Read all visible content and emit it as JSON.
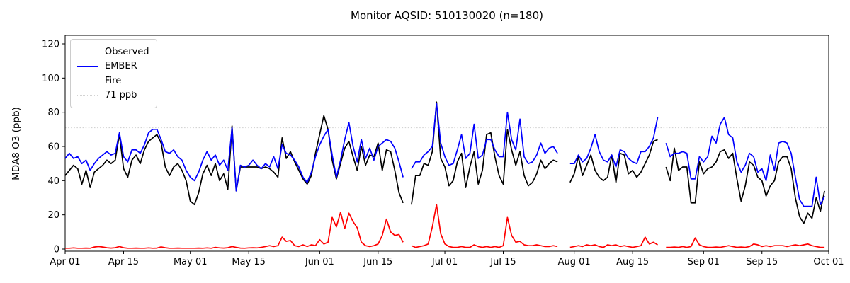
{
  "chart_data": {
    "type": "line",
    "title": "Monitor AQSID: 510130020 (n=180)",
    "ylabel": "MDA8 O3 (ppb)",
    "xlabel": "",
    "x_unit": "day index from Apr 01 (daily cadence, Apr 01 - Sep 30)",
    "n_label": 180,
    "ylim": [
      -2,
      126
    ],
    "y_ticks": [
      0,
      20,
      40,
      60,
      80,
      100,
      120
    ],
    "x_total_days": 183,
    "x_ticks": [
      {
        "label": "Apr 01",
        "day": 0
      },
      {
        "label": "Apr 15",
        "day": 14
      },
      {
        "label": "May 01",
        "day": 30
      },
      {
        "label": "May 15",
        "day": 44
      },
      {
        "label": "Jun 01",
        "day": 61
      },
      {
        "label": "Jun 15",
        "day": 75
      },
      {
        "label": "Jul 01",
        "day": 91
      },
      {
        "label": "Jul 15",
        "day": 105
      },
      {
        "label": "Aug 01",
        "day": 122
      },
      {
        "label": "Aug 15",
        "day": 136
      },
      {
        "label": "Sep 01",
        "day": 153
      },
      {
        "label": "Sep 15",
        "day": 167
      },
      {
        "label": "Oct 01",
        "day": 183
      }
    ],
    "threshold": {
      "value": 71,
      "label": "71 ppb",
      "color": "#d3d3d3",
      "style": "dotted"
    },
    "legend": [
      {
        "label": "Observed",
        "color": "#000000",
        "style": "solid"
      },
      {
        "label": "EMBER",
        "color": "#0000ff",
        "style": "solid"
      },
      {
        "label": "Fire",
        "color": "#ff0000",
        "style": "solid"
      },
      {
        "label": "71 ppb",
        "color": "#d3d3d3",
        "style": "dotted"
      }
    ],
    "series": [
      {
        "name": "Observed",
        "color": "#000000",
        "values": [
          43,
          46,
          49,
          47,
          38,
          46,
          36,
          45,
          47,
          49,
          52,
          50,
          52,
          67,
          47,
          42,
          52,
          55,
          50,
          58,
          63,
          65,
          67,
          62,
          48,
          43,
          48,
          50,
          46,
          40,
          28,
          26,
          33,
          44,
          49,
          43,
          50,
          40,
          44,
          35,
          72,
          34,
          48,
          48,
          48,
          48,
          48,
          47,
          48,
          47,
          45,
          42,
          65,
          53,
          57,
          51,
          46,
          41,
          38,
          43,
          56,
          67,
          78,
          70,
          52,
          41,
          50,
          59,
          63,
          54,
          46,
          60,
          49,
          55,
          54,
          62,
          46,
          58,
          57,
          46,
          33,
          27,
          null,
          26,
          43,
          43,
          50,
          49,
          57,
          86,
          53,
          48,
          37,
          40,
          51,
          56,
          36,
          48,
          57,
          38,
          46,
          67,
          68,
          54,
          43,
          38,
          70,
          58,
          49,
          57,
          43,
          37,
          39,
          44,
          52,
          47,
          50,
          52,
          51,
          null,
          null,
          39,
          44,
          54,
          43,
          49,
          55,
          46,
          42,
          40,
          42,
          55,
          39,
          56,
          55,
          44,
          46,
          42,
          45,
          50,
          55,
          63,
          64,
          null,
          48,
          40,
          59,
          46,
          48,
          48,
          27,
          27,
          51,
          44,
          47,
          48,
          51,
          57,
          58,
          53,
          56,
          41,
          28,
          37,
          51,
          49,
          42,
          40,
          31,
          37,
          40,
          51,
          54,
          54,
          47,
          30,
          19,
          15,
          21,
          18,
          30,
          22,
          34
        ]
      },
      {
        "name": "EMBER",
        "color": "#0000ff",
        "values": [
          53,
          56,
          53,
          54,
          50,
          52,
          46,
          50,
          53,
          55,
          57,
          55,
          56,
          68,
          54,
          51,
          58,
          58,
          56,
          61,
          68,
          70,
          70,
          64,
          57,
          56,
          58,
          54,
          52,
          46,
          42,
          40,
          45,
          52,
          57,
          52,
          55,
          49,
          52,
          46,
          71,
          34,
          49,
          48,
          49,
          52,
          49,
          47,
          50,
          48,
          54,
          47,
          61,
          56,
          55,
          52,
          48,
          42,
          39,
          45,
          54,
          61,
          66,
          70,
          55,
          42,
          52,
          64,
          74,
          60,
          51,
          64,
          53,
          59,
          52,
          60,
          62,
          64,
          63,
          59,
          51,
          42,
          null,
          47,
          51,
          51,
          55,
          57,
          60,
          85,
          62,
          54,
          49,
          50,
          58,
          67,
          53,
          56,
          73,
          53,
          55,
          64,
          64,
          58,
          54,
          54,
          80,
          64,
          58,
          76,
          54,
          50,
          51,
          55,
          62,
          56,
          59,
          60,
          56,
          null,
          null,
          50,
          50,
          55,
          51,
          53,
          59,
          67,
          57,
          52,
          51,
          55,
          48,
          58,
          57,
          53,
          51,
          50,
          57,
          57,
          60,
          65,
          77,
          null,
          62,
          54,
          56,
          56,
          57,
          56,
          41,
          41,
          54,
          51,
          54,
          66,
          62,
          73,
          77,
          67,
          65,
          51,
          45,
          49,
          56,
          54,
          45,
          47,
          40,
          55,
          46,
          62,
          63,
          62,
          56,
          42,
          29,
          25,
          25,
          25,
          42,
          26,
          31
        ]
      },
      {
        "name": "Fire",
        "color": "#ff0000",
        "values": [
          0.5,
          0.5,
          0.7,
          0.5,
          0.5,
          0.6,
          0.5,
          1.2,
          1.5,
          1.2,
          0.8,
          0.6,
          0.8,
          1.5,
          0.8,
          0.5,
          0.5,
          0.6,
          0.5,
          0.5,
          0.7,
          0.5,
          0.6,
          1.3,
          0.8,
          0.5,
          0.5,
          0.6,
          0.5,
          0.5,
          0.5,
          0.5,
          0.6,
          0.5,
          0.7,
          0.5,
          1,
          0.7,
          0.6,
          0.8,
          1.5,
          1,
          0.6,
          0.5,
          0.7,
          0.8,
          0.7,
          1,
          1.5,
          2,
          1.5,
          2,
          7,
          4.5,
          5,
          2,
          1.5,
          2.5,
          1.5,
          2.5,
          2,
          5.5,
          3,
          4,
          18.5,
          13,
          21.5,
          12,
          21,
          16,
          12.5,
          4,
          2,
          1.5,
          2,
          3,
          8,
          17.5,
          10,
          8,
          8.5,
          4,
          null,
          2,
          1,
          1.5,
          2,
          3,
          13,
          26,
          9,
          3,
          1.5,
          1,
          1,
          1.5,
          1,
          1,
          2.5,
          1.5,
          1,
          1.5,
          1,
          1.5,
          1,
          2,
          18.5,
          8,
          4,
          4.5,
          2.5,
          2,
          2,
          2.5,
          2,
          1.5,
          1.5,
          2,
          1.5,
          null,
          null,
          1,
          1.5,
          2,
          1.5,
          2.5,
          2,
          2.5,
          1.5,
          1,
          2.5,
          2,
          2.5,
          1.5,
          2,
          1.5,
          1,
          1.5,
          2,
          7,
          3,
          4,
          2.5,
          null,
          1,
          1,
          1.2,
          1,
          1.5,
          1,
          1.5,
          6.5,
          2.5,
          1.5,
          1,
          1,
          1.2,
          1,
          1.5,
          2,
          1.5,
          1,
          1.2,
          1,
          1.5,
          3,
          2.5,
          1.5,
          2,
          1.5,
          2,
          2,
          2,
          1.5,
          2,
          2.5,
          2,
          2.5,
          3,
          2,
          1.5,
          1,
          1
        ]
      }
    ]
  }
}
